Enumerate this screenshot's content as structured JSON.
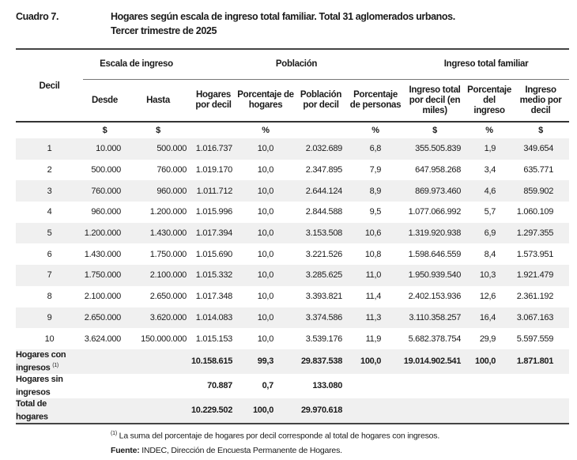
{
  "caption": {
    "number": "Cuadro 7.",
    "title_line1": "Hogares según escala de ingreso total familiar. Total 31 aglomerados urbanos.",
    "title_line2": "Tercer trimestre de 2025"
  },
  "header": {
    "decil": "Decil",
    "groups": [
      "Escala de ingreso",
      "Población",
      "Ingreso total familiar"
    ],
    "columns": [
      "Desde",
      "Hasta",
      "Hogares por decil",
      "Porcentaje de hogares",
      "Población por decil",
      "Porcentaje de personas",
      "Ingreso total por decil (en miles)",
      "Porcentaje del ingreso",
      "Ingreso medio por decil"
    ],
    "units": [
      "$",
      "$",
      "",
      "%",
      "",
      "%",
      "$",
      "%",
      "$"
    ]
  },
  "rows": [
    [
      "1",
      "10.000",
      "500.000",
      "1.016.737",
      "10,0",
      "2.032.689",
      "6,8",
      "355.505.839",
      "1,9",
      "349.654"
    ],
    [
      "2",
      "500.000",
      "760.000",
      "1.019.170",
      "10,0",
      "2.347.895",
      "7,9",
      "647.958.268",
      "3,4",
      "635.771"
    ],
    [
      "3",
      "760.000",
      "960.000",
      "1.011.712",
      "10,0",
      "2.644.124",
      "8,9",
      "869.973.460",
      "4,6",
      "859.902"
    ],
    [
      "4",
      "960.000",
      "1.200.000",
      "1.015.996",
      "10,0",
      "2.844.588",
      "9,5",
      "1.077.066.992",
      "5,7",
      "1.060.109"
    ],
    [
      "5",
      "1.200.000",
      "1.430.000",
      "1.017.394",
      "10,0",
      "3.153.508",
      "10,6",
      "1.319.920.938",
      "6,9",
      "1.297.355"
    ],
    [
      "6",
      "1.430.000",
      "1.750.000",
      "1.015.690",
      "10,0",
      "3.221.526",
      "10,8",
      "1.598.646.559",
      "8,4",
      "1.573.951"
    ],
    [
      "7",
      "1.750.000",
      "2.100.000",
      "1.015.332",
      "10,0",
      "3.285.625",
      "11,0",
      "1.950.939.540",
      "10,3",
      "1.921.479"
    ],
    [
      "8",
      "2.100.000",
      "2.650.000",
      "1.017.348",
      "10,0",
      "3.393.821",
      "11,4",
      "2.402.153.936",
      "12,6",
      "2.361.192"
    ],
    [
      "9",
      "2.650.000",
      "3.620.000",
      "1.014.083",
      "10,0",
      "3.374.586",
      "11,3",
      "3.110.358.257",
      "16,4",
      "3.067.163"
    ],
    [
      "10",
      "3.624.000",
      "150.000.000",
      "1.015.153",
      "10,0",
      "3.539.176",
      "11,9",
      "5.682.378.754",
      "29,9",
      "5.597.559"
    ]
  ],
  "summary": [
    {
      "label_line1": "Hogares con",
      "label_line2": "ingresos",
      "note": "(1)",
      "values": [
        "",
        "",
        "10.158.615",
        "99,3",
        "29.837.538",
        "100,0",
        "19.014.902.541",
        "100,0",
        "1.871.801"
      ]
    },
    {
      "label_line1": "Hogares sin",
      "label_line2": "ingresos",
      "note": "",
      "values": [
        "",
        "",
        "70.887",
        "0,7",
        "133.080",
        "",
        "",
        "",
        ""
      ]
    },
    {
      "label_line1": "Total de",
      "label_line2": "hogares",
      "note": "",
      "values": [
        "",
        "",
        "10.229.502",
        "100,0",
        "29.970.618",
        "",
        "",
        "",
        ""
      ]
    }
  ],
  "footnote": {
    "mark": "(1)",
    "text": " La suma del porcentaje de hogares por decil corresponde al total de hogares con ingresos."
  },
  "source": {
    "label": "Fuente:",
    "text": " INDEC, Dirección de Encuesta Permanente de Hogares."
  }
}
